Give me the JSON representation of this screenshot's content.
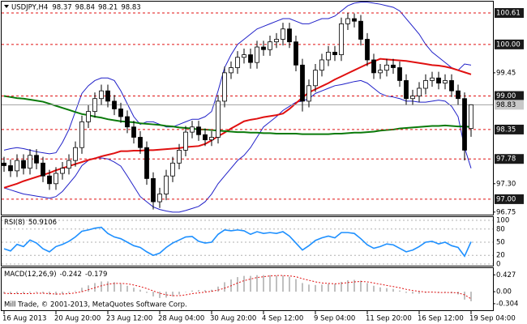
{
  "chart_data": [
    {
      "type": "candlestick",
      "title": "USDJPY,H4",
      "categories": [
        "16 Aug 2013",
        null,
        null,
        null,
        null,
        null,
        null,
        null,
        "20 Aug 20:00",
        null,
        null,
        null,
        null,
        null,
        null,
        null,
        "23 Aug 12:00",
        null,
        null,
        null,
        null,
        null,
        null,
        null,
        "28 Aug 04:00",
        null,
        null,
        null,
        null,
        null,
        null,
        null,
        "30 Aug 20:00",
        null,
        null,
        null,
        null,
        null,
        null,
        null,
        "4 Sep 12:00",
        null,
        null,
        null,
        null,
        null,
        null,
        null,
        "9 Sep 04:00",
        null,
        null,
        null,
        null,
        null,
        null,
        null,
        "11 Sep 20:00",
        null,
        null,
        null,
        null,
        null,
        null,
        null,
        "16 Sep 12:00",
        null,
        null,
        null,
        null,
        null,
        null,
        null,
        "19 Sep 04:00"
      ],
      "open": [
        97.7,
        97.65,
        97.55,
        97.75,
        97.6,
        97.85,
        97.7,
        97.45,
        97.3,
        97.5,
        97.6,
        97.75,
        98.0,
        98.5,
        98.7,
        98.95,
        99.1,
        98.9,
        98.75,
        98.6,
        98.4,
        98.2,
        98.0,
        97.4,
        96.95,
        97.1,
        97.45,
        97.7,
        97.95,
        98.3,
        98.4,
        98.25,
        98.15,
        98.2,
        98.9,
        99.45,
        99.55,
        99.75,
        99.8,
        99.65,
        99.95,
        99.9,
        100.05,
        100.1,
        100.3,
        100.05,
        99.6,
        98.9,
        99.2,
        99.5,
        99.7,
        99.85,
        99.8,
        100.4,
        100.5,
        100.45,
        100.1,
        99.7,
        99.45,
        99.5,
        99.6,
        99.55,
        99.3,
        98.95,
        99.0,
        99.15,
        99.3,
        99.35,
        99.25,
        99.3,
        99.1,
        98.95,
        98.37
      ],
      "high": [
        97.82,
        97.77,
        97.87,
        97.87,
        97.97,
        97.97,
        97.82,
        97.57,
        97.62,
        97.72,
        97.87,
        98.12,
        98.62,
        98.82,
        99.07,
        99.22,
        99.22,
        99.02,
        98.87,
        98.72,
        98.52,
        98.32,
        98.12,
        97.52,
        97.22,
        97.57,
        97.82,
        98.07,
        98.42,
        98.52,
        98.52,
        98.37,
        98.32,
        99.02,
        99.57,
        99.67,
        99.87,
        99.92,
        99.92,
        100.07,
        100.07,
        100.17,
        100.22,
        100.42,
        100.42,
        100.17,
        99.72,
        99.32,
        99.62,
        99.82,
        99.97,
        99.97,
        100.52,
        100.61,
        100.6,
        100.57,
        100.22,
        99.82,
        99.62,
        99.72,
        99.72,
        99.67,
        99.42,
        99.12,
        99.27,
        99.42,
        99.47,
        99.47,
        99.42,
        99.42,
        99.22,
        99.07,
        98.84
      ],
      "low": [
        97.53,
        97.43,
        97.43,
        97.48,
        97.48,
        97.58,
        97.33,
        97.18,
        97.18,
        97.38,
        97.48,
        97.63,
        97.88,
        98.38,
        98.58,
        98.83,
        98.78,
        98.63,
        98.48,
        98.28,
        98.08,
        97.88,
        97.28,
        96.8,
        96.83,
        96.98,
        97.33,
        97.58,
        97.83,
        98.18,
        98.13,
        98.03,
        98.03,
        98.08,
        98.78,
        99.33,
        99.43,
        99.63,
        99.53,
        99.53,
        99.78,
        99.78,
        99.93,
        99.98,
        99.93,
        99.48,
        98.7,
        98.78,
        99.08,
        99.38,
        99.58,
        99.68,
        99.68,
        100.28,
        100.33,
        99.98,
        99.58,
        99.33,
        99.33,
        99.38,
        99.43,
        99.18,
        98.83,
        98.83,
        98.88,
        99.03,
        99.18,
        99.13,
        99.13,
        98.98,
        98.83,
        97.75,
        98.21
      ],
      "close": [
        97.65,
        97.55,
        97.75,
        97.6,
        97.85,
        97.7,
        97.45,
        97.3,
        97.5,
        97.6,
        97.75,
        98.0,
        98.5,
        98.7,
        98.95,
        99.1,
        98.9,
        98.75,
        98.6,
        98.4,
        98.2,
        98.0,
        97.4,
        96.95,
        97.1,
        97.45,
        97.7,
        97.95,
        98.3,
        98.4,
        98.25,
        98.15,
        98.2,
        98.9,
        99.45,
        99.55,
        99.75,
        99.8,
        99.65,
        99.95,
        99.9,
        100.05,
        100.1,
        100.3,
        100.05,
        99.6,
        98.9,
        99.2,
        99.5,
        99.7,
        99.85,
        99.8,
        100.4,
        100.5,
        100.45,
        100.1,
        99.7,
        99.45,
        99.5,
        99.6,
        99.55,
        99.3,
        98.95,
        99.0,
        99.15,
        99.3,
        99.35,
        99.25,
        99.3,
        99.1,
        98.95,
        97.95,
        98.83
      ],
      "up_color": "#ffffff",
      "down_color": "#000000",
      "wick_color": "#000000",
      "series": [
        {
          "color": "#2020c8",
          "width": 1,
          "values": [
            97.95,
            97.98,
            98.0,
            97.98,
            97.95,
            97.92,
            97.9,
            97.88,
            97.9,
            98.1,
            98.35,
            98.7,
            99.05,
            99.2,
            99.3,
            99.35,
            99.35,
            99.3,
            99.1,
            98.85,
            98.6,
            98.45,
            98.5,
            98.5,
            98.45,
            98.4,
            98.4,
            98.45,
            98.5,
            98.55,
            98.55,
            98.6,
            98.7,
            99.1,
            99.55,
            99.8,
            100.0,
            100.1,
            100.2,
            100.3,
            100.35,
            100.4,
            100.45,
            100.5,
            100.5,
            100.45,
            100.4,
            100.4,
            100.45,
            100.5,
            100.5,
            100.55,
            100.65,
            100.75,
            100.8,
            100.82,
            100.82,
            100.8,
            100.78,
            100.75,
            100.72,
            100.65,
            100.5,
            100.35,
            100.2,
            100.0,
            99.85,
            99.75,
            99.65,
            99.55,
            99.5,
            99.62,
            99.6
          ]
        },
        {
          "color": "#2020c8",
          "width": 1,
          "values": [
            97.22,
            97.18,
            97.14,
            97.1,
            97.08,
            97.06,
            97.04,
            97.02,
            97.05,
            97.15,
            97.3,
            97.45,
            97.65,
            97.75,
            97.8,
            97.8,
            97.78,
            97.72,
            97.64,
            97.45,
            97.25,
            97.05,
            96.95,
            96.85,
            96.8,
            96.77,
            96.75,
            96.75,
            96.78,
            96.82,
            96.86,
            96.95,
            97.1,
            97.3,
            97.45,
            97.6,
            97.75,
            97.85,
            98.0,
            98.2,
            98.4,
            98.5,
            98.6,
            98.72,
            98.8,
            98.88,
            98.9,
            98.95,
            99.05,
            99.1,
            99.15,
            99.2,
            99.22,
            99.25,
            99.28,
            99.3,
            99.25,
            99.15,
            99.05,
            99.0,
            98.98,
            98.95,
            98.9,
            98.9,
            98.88,
            98.88,
            98.9,
            98.92,
            98.9,
            98.8,
            98.6,
            98.0,
            97.6
          ]
        },
        {
          "color": "#e01010",
          "width": 2,
          "values": [
            97.22,
            97.26,
            97.3,
            97.35,
            97.39,
            97.43,
            97.47,
            97.51,
            97.56,
            97.6,
            97.64,
            97.68,
            97.72,
            97.76,
            97.79,
            97.83,
            97.86,
            97.89,
            97.93,
            97.93,
            97.94,
            97.94,
            97.95,
            97.95,
            97.96,
            97.97,
            97.98,
            97.99,
            98.01,
            98.02,
            98.03,
            98.07,
            98.14,
            98.22,
            98.29,
            98.37,
            98.44,
            98.51,
            98.54,
            98.56,
            98.59,
            98.61,
            98.63,
            98.66,
            98.75,
            98.86,
            98.97,
            99.07,
            99.13,
            99.19,
            99.25,
            99.32,
            99.38,
            99.44,
            99.5,
            99.56,
            99.62,
            99.67,
            99.72,
            99.71,
            99.7,
            99.69,
            99.68,
            99.66,
            99.64,
            99.62,
            99.6,
            99.59,
            99.57,
            99.54,
            99.5,
            99.46,
            99.42
          ]
        },
        {
          "color": "#0a7a0a",
          "width": 2,
          "values": [
            99.0,
            98.98,
            98.96,
            98.95,
            98.93,
            98.91,
            98.89,
            98.85,
            98.81,
            98.77,
            98.73,
            98.69,
            98.65,
            98.63,
            98.6,
            98.58,
            98.55,
            98.53,
            98.51,
            98.5,
            98.49,
            98.47,
            98.46,
            98.45,
            98.44,
            98.42,
            98.41,
            98.39,
            98.38,
            98.37,
            98.35,
            98.35,
            98.34,
            98.33,
            98.32,
            98.31,
            98.3,
            98.3,
            98.29,
            98.29,
            98.28,
            98.28,
            98.27,
            98.27,
            98.27,
            98.27,
            98.26,
            98.26,
            98.26,
            98.26,
            98.26,
            98.27,
            98.27,
            98.28,
            98.29,
            98.29,
            98.3,
            98.31,
            98.33,
            98.34,
            98.35,
            98.37,
            98.38,
            98.39,
            98.4,
            98.41,
            98.42,
            98.42,
            98.43,
            98.42,
            98.41,
            98.41,
            98.4
          ]
        }
      ],
      "levels": [
        100.61,
        {
          "value": 100,
          "label": "100.00"
        },
        {
          "value": 99,
          "label": "99.00"
        },
        98.35,
        97.78,
        {
          "value": 97,
          "label": "97.00"
        }
      ],
      "level_color": "#e01010",
      "ylim": [
        96.7,
        100.83
      ],
      "yticks": [
        99.45,
        {
          "value": 97.3,
          "label": "97.30"
        },
        96.75
      ]
    },
    {
      "type": "line",
      "title": "RSI(8)",
      "color": "#1e90ff",
      "values": [
        35,
        30,
        45,
        40,
        55,
        48,
        35,
        28,
        40,
        45,
        52,
        62,
        75,
        78,
        82,
        84,
        70,
        62,
        58,
        50,
        42,
        38,
        28,
        20,
        25,
        38,
        48,
        55,
        62,
        63,
        52,
        48,
        50,
        68,
        78,
        76,
        78,
        76,
        68,
        74,
        70,
        72,
        70,
        74,
        64,
        48,
        32,
        42,
        54,
        60,
        64,
        60,
        72,
        72,
        70,
        58,
        44,
        36,
        40,
        46,
        44,
        36,
        28,
        32,
        40,
        50,
        52,
        46,
        50,
        42,
        38,
        18,
        50.9106
      ],
      "ylim": [
        -3.7,
        107.4
      ],
      "yticks": [
        100,
        80,
        50,
        20,
        0
      ]
    },
    {
      "type": "bar",
      "title": "MACD(12,26,9)",
      "color": "#c0c0c0",
      "values": [
        -0.05,
        -0.06,
        -0.05,
        -0.05,
        -0.03,
        -0.02,
        -0.04,
        -0.07,
        -0.08,
        -0.06,
        -0.03,
        0.02,
        0.1,
        0.16,
        0.22,
        0.26,
        0.26,
        0.24,
        0.2,
        0.15,
        0.1,
        0.05,
        -0.03,
        -0.12,
        -0.16,
        -0.15,
        -0.12,
        -0.07,
        -0.01,
        0.03,
        0.04,
        0.04,
        0.05,
        0.13,
        0.24,
        0.31,
        0.37,
        0.4,
        0.4,
        0.42,
        0.42,
        0.42,
        0.41,
        0.41,
        0.38,
        0.32,
        0.22,
        0.18,
        0.17,
        0.18,
        0.2,
        0.2,
        0.25,
        0.29,
        0.3,
        0.28,
        0.22,
        0.15,
        0.11,
        0.09,
        0.07,
        0.03,
        -0.03,
        -0.05,
        -0.05,
        -0.03,
        -0.02,
        -0.02,
        -0.02,
        -0.04,
        -0.07,
        -0.2,
        -0.242
      ],
      "series": [
        {
          "color": "#e01010",
          "values": [
            -0.04,
            -0.05,
            -0.05,
            -0.05,
            -0.05,
            -0.04,
            -0.04,
            -0.05,
            -0.06,
            -0.06,
            -0.05,
            -0.03,
            0.0,
            0.05,
            0.1,
            0.15,
            0.19,
            0.21,
            0.21,
            0.2,
            0.17,
            0.13,
            0.08,
            0.02,
            -0.04,
            -0.08,
            -0.1,
            -0.1,
            -0.08,
            -0.05,
            -0.03,
            -0.01,
            0.01,
            0.04,
            0.09,
            0.15,
            0.22,
            0.28,
            0.32,
            0.36,
            0.38,
            0.4,
            0.41,
            0.41,
            0.4,
            0.38,
            0.33,
            0.29,
            0.25,
            0.22,
            0.21,
            0.2,
            0.21,
            0.23,
            0.25,
            0.26,
            0.25,
            0.22,
            0.19,
            0.16,
            0.13,
            0.1,
            0.06,
            0.03,
            0.01,
            -0.01,
            -0.01,
            -0.02,
            -0.02,
            -0.02,
            -0.03,
            -0.08,
            -0.179
          ]
        }
      ],
      "ylim": [
        -0.47,
        0.598
      ],
      "yticks": [
        0.427,
        {
          "value": 0,
          "label": "0.00"
        },
        -0.304
      ],
      "annotation": "Mill Trade, © 2001-2013, MetaQuotes Software Corp."
    }
  ]
}
